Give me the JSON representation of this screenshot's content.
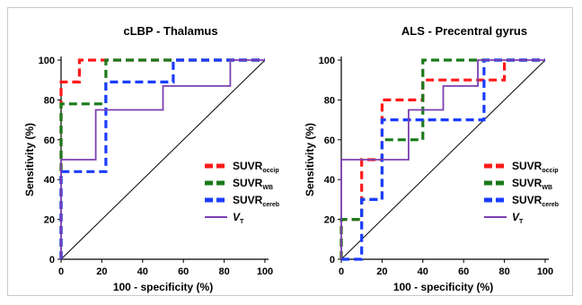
{
  "chart_data": [
    {
      "type": "line",
      "title": "cLBP - Thalamus",
      "xlabel": "100 - specificity (%)",
      "ylabel": "Sensitivity (%)",
      "xlim": [
        0,
        100
      ],
      "ylim": [
        0,
        100
      ],
      "xticks": [
        "0",
        "20",
        "40",
        "60",
        "80",
        "100"
      ],
      "yticks": [
        "0",
        "20",
        "40",
        "60",
        "80",
        "100"
      ],
      "legend_position": "right-lower",
      "series": [
        {
          "name": "SUVR",
          "sub": "occip",
          "color": "#ff1a1a",
          "style": "dashed",
          "x": [
            0,
            0,
            2,
            2,
            9,
            9,
            100
          ],
          "y": [
            0,
            89,
            89,
            89,
            89,
            100,
            100
          ]
        },
        {
          "name": "SUVR",
          "sub": "WB",
          "color": "#1a7a1a",
          "style": "dashed",
          "x": [
            0,
            0,
            22,
            22,
            100
          ],
          "y": [
            0,
            78,
            78,
            100,
            100
          ]
        },
        {
          "name": "SUVR",
          "sub": "cereb",
          "color": "#1a3cff",
          "style": "dashed",
          "x": [
            0,
            0,
            22,
            22,
            55,
            55,
            100
          ],
          "y": [
            0,
            44,
            44,
            89,
            89,
            100,
            100
          ]
        },
        {
          "name": "V",
          "sub": "T",
          "italic": true,
          "color": "#7b3fb0",
          "style": "solid",
          "x": [
            0,
            0,
            17,
            17,
            50,
            50,
            83,
            83,
            100
          ],
          "y": [
            0,
            50,
            50,
            75,
            75,
            87,
            87,
            100,
            100
          ]
        }
      ],
      "reference_line": {
        "x": [
          0,
          100
        ],
        "y": [
          0,
          100
        ],
        "color": "#000000"
      }
    },
    {
      "type": "line",
      "title": "ALS - Precentral gyrus",
      "xlabel": "100 - specificity (%)",
      "ylabel": "Sensitivity (%)",
      "xlim": [
        0,
        100
      ],
      "ylim": [
        0,
        100
      ],
      "xticks": [
        "0",
        "20",
        "40",
        "60",
        "80",
        "100"
      ],
      "yticks": [
        "0",
        "20",
        "40",
        "60",
        "80",
        "100"
      ],
      "legend_position": "right-lower",
      "series": [
        {
          "name": "SUVR",
          "sub": "occip",
          "color": "#ff1a1a",
          "style": "dashed",
          "x": [
            0,
            0,
            10,
            10,
            20,
            20,
            40,
            40,
            80,
            80,
            100
          ],
          "y": [
            0,
            20,
            20,
            50,
            50,
            80,
            80,
            90,
            90,
            100,
            100
          ]
        },
        {
          "name": "SUVR",
          "sub": "WB",
          "color": "#1a7a1a",
          "style": "dashed",
          "x": [
            0,
            0,
            10,
            10,
            20,
            20,
            30,
            30,
            40,
            40,
            100
          ],
          "y": [
            0,
            20,
            20,
            30,
            30,
            60,
            60,
            60,
            60,
            100,
            100
          ]
        },
        {
          "name": "SUVR",
          "sub": "cereb",
          "color": "#1a3cff",
          "style": "dashed",
          "x": [
            0,
            10,
            10,
            20,
            20,
            70,
            70,
            100
          ],
          "y": [
            0,
            0,
            30,
            30,
            70,
            70,
            100,
            100
          ]
        },
        {
          "name": "V",
          "sub": "T",
          "italic": true,
          "color": "#7b3fb0",
          "style": "solid",
          "x": [
            0,
            0,
            33,
            33,
            50,
            50,
            67,
            67,
            100
          ],
          "y": [
            0,
            50,
            50,
            75,
            75,
            87,
            87,
            100,
            100
          ]
        }
      ],
      "reference_line": {
        "x": [
          0,
          100
        ],
        "y": [
          0,
          100
        ],
        "color": "#000000"
      }
    }
  ]
}
